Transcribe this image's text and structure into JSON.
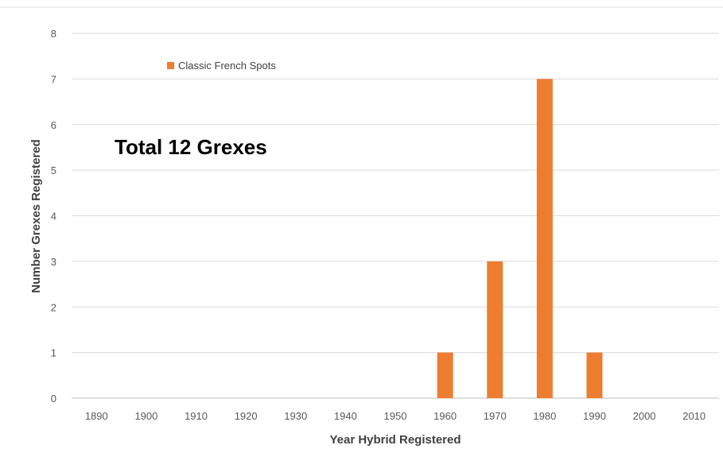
{
  "chart_data": {
    "type": "bar",
    "categories": [
      "1890",
      "1900",
      "1910",
      "1920",
      "1930",
      "1940",
      "1950",
      "1960",
      "1970",
      "1980",
      "1990",
      "2000",
      "2010"
    ],
    "series": [
      {
        "name": "Classic French Spots",
        "values": [
          0,
          0,
          0,
          0,
          0,
          0,
          0,
          1,
          3,
          7,
          1,
          0,
          0
        ]
      }
    ],
    "xlabel": "Year Hybrid Registered",
    "ylabel": "Number Grexes Registered",
    "ylim": [
      0,
      8
    ],
    "yticks": [
      "0",
      "1",
      "2",
      "3",
      "4",
      "5",
      "6",
      "7",
      "8"
    ],
    "grid": true,
    "legend_position": "top-left",
    "annotation": "Total 12 Grexes",
    "colors": {
      "bar": "#ED7D31",
      "grid": "#D9D9D9",
      "axis": "#BFBFBF"
    }
  }
}
